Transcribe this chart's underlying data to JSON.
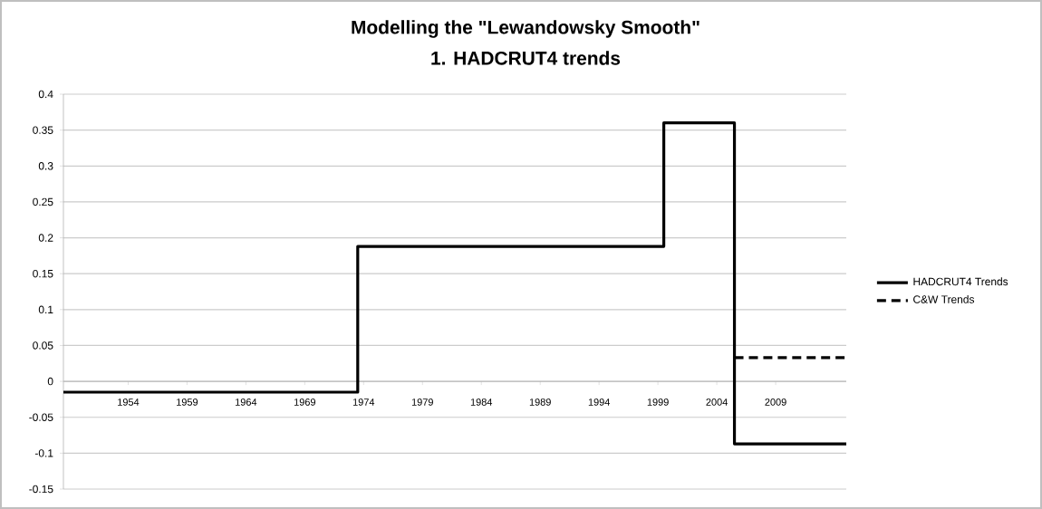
{
  "chart_data": {
    "type": "step",
    "title": "Modelling the \"Lewandowsky Smooth\"",
    "subtitle": "1. HADCRUT4 trends",
    "series": [
      {
        "name": "HADCRUT4 Trends",
        "color": "#000000",
        "line_style": "solid",
        "x": [
          1948.5,
          1973.5,
          1999.5,
          2005.5,
          2015
        ],
        "values": [
          -0.015,
          0.188,
          0.36,
          -0.087,
          -0.087
        ]
      },
      {
        "name": "C&W Trends",
        "color": "#000000",
        "line_style": "dashed",
        "x": [
          2005.5,
          2015
        ],
        "values": [
          0.033,
          0.033
        ]
      }
    ],
    "xlim": [
      1948.5,
      2015
    ],
    "xticks": [
      1954,
      1959,
      1964,
      1969,
      1974,
      1979,
      1984,
      1989,
      1994,
      1999,
      2004,
      2009
    ],
    "ylim": [
      -0.15,
      0.4
    ],
    "yticks": [
      -0.15,
      -0.1,
      -0.05,
      0,
      0.05,
      0.1,
      0.15,
      0.2,
      0.25,
      0.3,
      0.35,
      0.4
    ],
    "grid": "y",
    "legend": "right"
  }
}
